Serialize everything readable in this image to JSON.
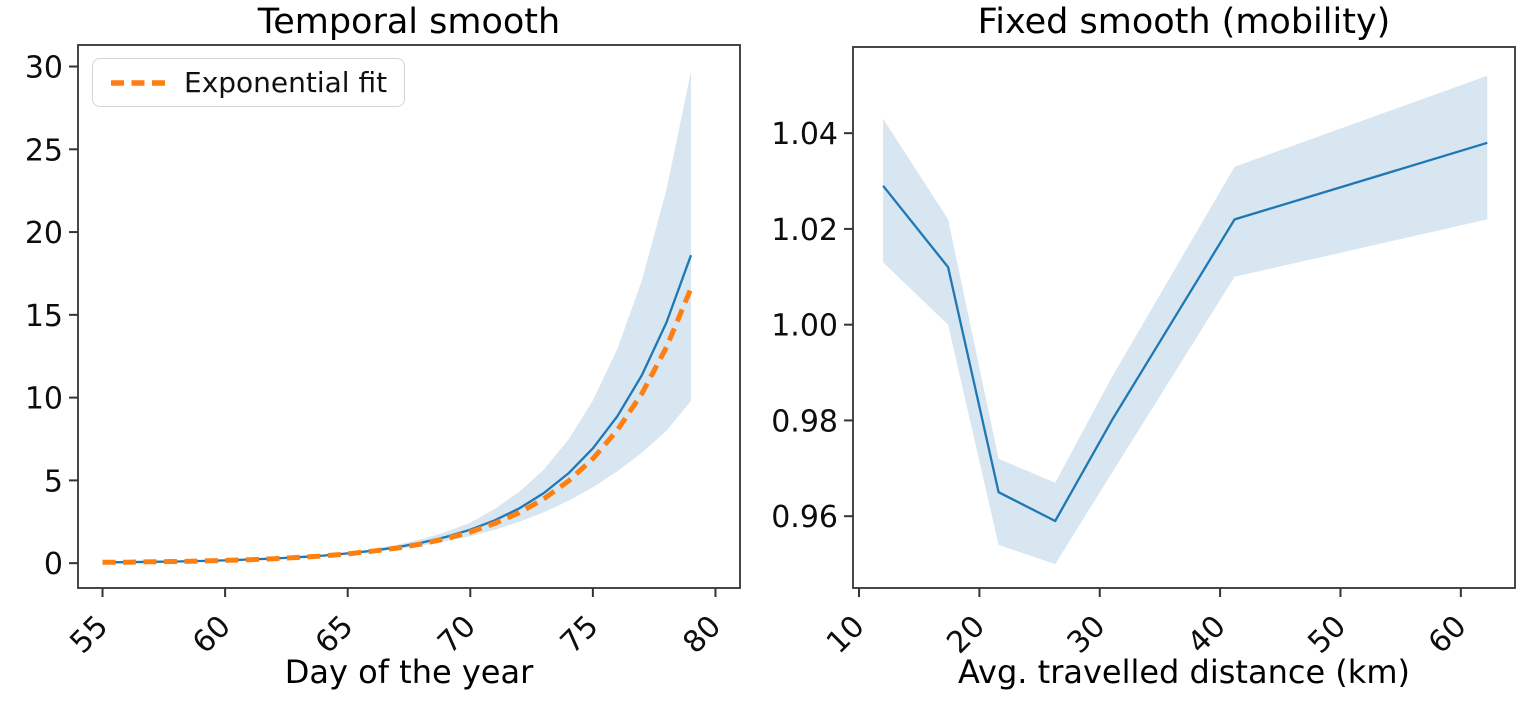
{
  "figure": {
    "background_color": "#ffffff",
    "text_color": "#000000",
    "spine_color": "#333333"
  },
  "chart_data": [
    {
      "type": "line",
      "title": "Temporal smooth",
      "xlabel": "Day of the year",
      "ylabel": "",
      "xlim": [
        54,
        81
      ],
      "ylim": [
        -1.5,
        31.3
      ],
      "grid": false,
      "xticks": [
        55,
        60,
        65,
        70,
        75,
        80
      ],
      "xtick_labels": [
        "55",
        "60",
        "65",
        "70",
        "75",
        "80"
      ],
      "yticks": [
        0,
        5,
        10,
        15,
        20,
        25,
        30
      ],
      "ytick_labels": [
        "0",
        "5",
        "10",
        "15",
        "20",
        "25",
        "30"
      ],
      "x": [
        55,
        56,
        57,
        58,
        59,
        60,
        61,
        62,
        63,
        64,
        65,
        66,
        67,
        68,
        69,
        70,
        71,
        72,
        73,
        74,
        75,
        76,
        77,
        78,
        79
      ],
      "series": [
        {
          "role": "smooth-mean",
          "color": "#1f77b4",
          "style": "solid",
          "values": [
            0.05,
            0.06,
            0.08,
            0.1,
            0.13,
            0.17,
            0.22,
            0.28,
            0.36,
            0.46,
            0.59,
            0.75,
            0.96,
            1.23,
            1.58,
            2.02,
            2.59,
            3.31,
            4.24,
            5.42,
            6.94,
            8.88,
            11.36,
            14.53,
            18.6
          ]
        },
        {
          "role": "exponential-fit",
          "color": "#ff7f0e",
          "style": "dashed",
          "values": [
            0.05,
            0.06,
            0.08,
            0.1,
            0.13,
            0.17,
            0.21,
            0.27,
            0.35,
            0.44,
            0.56,
            0.72,
            0.91,
            1.16,
            1.48,
            1.88,
            2.4,
            3.05,
            3.89,
            4.96,
            6.31,
            8.04,
            10.24,
            13.04,
            16.6
          ]
        }
      ],
      "band": {
        "color": "rgba(31,119,180,0.18)",
        "upper": [
          0.05,
          0.06,
          0.08,
          0.11,
          0.14,
          0.18,
          0.23,
          0.3,
          0.38,
          0.5,
          0.65,
          0.85,
          1.11,
          1.45,
          1.88,
          2.45,
          3.28,
          4.31,
          5.66,
          7.46,
          9.83,
          12.95,
          17.08,
          22.54,
          29.7
        ],
        "lower": [
          0.05,
          0.06,
          0.08,
          0.1,
          0.13,
          0.17,
          0.21,
          0.27,
          0.34,
          0.43,
          0.54,
          0.68,
          0.85,
          1.06,
          1.32,
          1.63,
          2.02,
          2.5,
          3.07,
          3.76,
          4.58,
          5.55,
          6.68,
          7.99,
          9.8
        ]
      },
      "legend": {
        "position": "upper left",
        "label": "Exponential fit",
        "swatch_color": "#ff7f0e"
      }
    },
    {
      "type": "line",
      "title": "Fixed smooth (mobility)",
      "xlabel": "Avg. travelled distance (km)",
      "ylabel": "",
      "xlim": [
        9.5,
        64.5
      ],
      "ylim": [
        0.945,
        1.058
      ],
      "grid": false,
      "xticks": [
        10,
        20,
        30,
        40,
        50,
        60
      ],
      "xtick_labels": [
        "10",
        "20",
        "30",
        "40",
        "50",
        "60"
      ],
      "yticks": [
        0.96,
        0.98,
        1.0,
        1.02,
        1.04
      ],
      "ytick_labels": [
        "0.96",
        "0.98",
        "1.00",
        "1.02",
        "1.04"
      ],
      "x": [
        12,
        17.4,
        21.6,
        26.3,
        31,
        41.2,
        62.2
      ],
      "series": [
        {
          "role": "smooth-mean",
          "color": "#1f77b4",
          "style": "solid",
          "values": [
            1.029,
            1.012,
            0.965,
            0.959,
            0.98,
            1.022,
            1.038
          ]
        }
      ],
      "band": {
        "color": "rgba(31,119,180,0.18)",
        "upper": [
          1.043,
          1.022,
          0.972,
          0.967,
          0.989,
          1.033,
          1.052
        ],
        "lower": [
          1.013,
          1.0,
          0.954,
          0.95,
          0.969,
          1.01,
          1.022
        ]
      }
    }
  ]
}
